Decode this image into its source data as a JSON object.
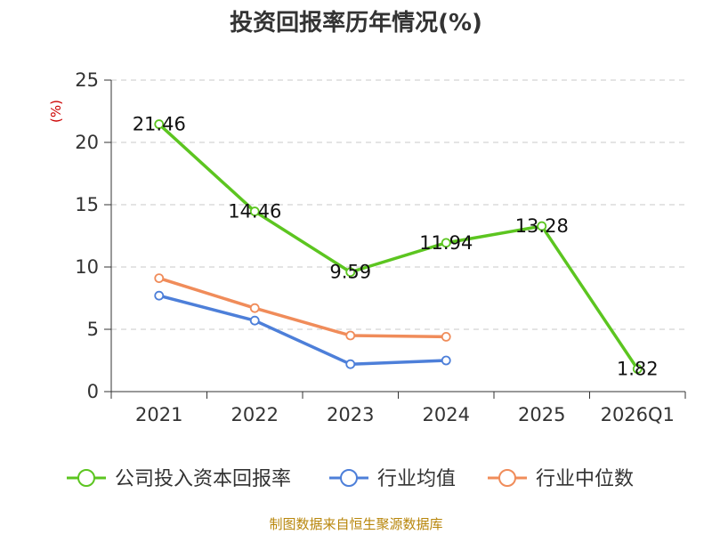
{
  "chart_data": {
    "type": "line",
    "title": "投资回报率历年情况(%)",
    "ylabel": "(%)",
    "xlabel": "",
    "ylim": [
      0,
      25
    ],
    "yticks": [
      0,
      5,
      10,
      15,
      20,
      25
    ],
    "categories": [
      "2021",
      "2022",
      "2023",
      "2024",
      "2025",
      "2026Q1"
    ],
    "grid": true,
    "legend_position": "bottom",
    "series": [
      {
        "name": "公司投入资本回报率",
        "color": "#5cc520",
        "values": [
          21.46,
          14.46,
          9.59,
          11.94,
          13.28,
          1.82
        ],
        "labels": [
          "21.46",
          "14.46",
          "9.59",
          "11.94",
          "13.28",
          "1.82"
        ]
      },
      {
        "name": "行业均值",
        "color": "#4d7fd9",
        "values": [
          7.7,
          5.7,
          2.2,
          2.5,
          null,
          null
        ]
      },
      {
        "name": "行业中位数",
        "color": "#f08c5a",
        "values": [
          9.1,
          6.7,
          4.5,
          4.4,
          null,
          null
        ]
      }
    ]
  },
  "footer": {
    "source": "制图数据来自恒生聚源数据库"
  }
}
